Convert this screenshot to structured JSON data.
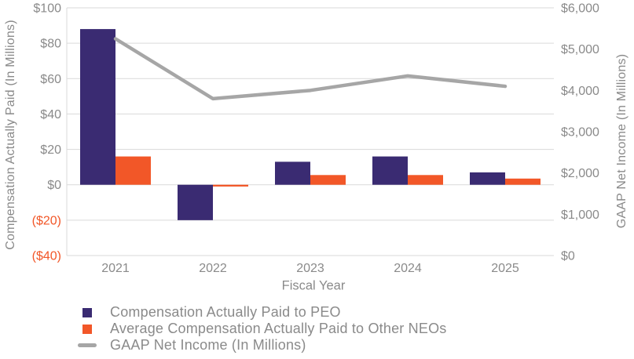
{
  "chart_data": {
    "type": "combo",
    "title": "",
    "categories": [
      "2021",
      "2022",
      "2023",
      "2024",
      "2025"
    ],
    "x_axis": {
      "title": "Fiscal Year"
    },
    "left_axis": {
      "title": "Compensation Actually Paid (In Millions)",
      "min": -40,
      "max": 100,
      "step": 20,
      "ticks": [
        {
          "value": 100,
          "label": "$100"
        },
        {
          "value": 80,
          "label": "$80"
        },
        {
          "value": 60,
          "label": "$60"
        },
        {
          "value": 40,
          "label": "$40"
        },
        {
          "value": 20,
          "label": "$20"
        },
        {
          "value": 0,
          "label": "$0"
        },
        {
          "value": -20,
          "label": "($20)"
        },
        {
          "value": -40,
          "label": "($40)"
        }
      ]
    },
    "right_axis": {
      "title": "GAAP Net Income (In Millions)",
      "min": 0,
      "max": 6000,
      "step": 1000,
      "ticks": [
        {
          "value": 6000,
          "label": "$6,000"
        },
        {
          "value": 5000,
          "label": "$5,000"
        },
        {
          "value": 4000,
          "label": "$4,000"
        },
        {
          "value": 3000,
          "label": "$3,000"
        },
        {
          "value": 2000,
          "label": "$2,000"
        },
        {
          "value": 1000,
          "label": "$1,000"
        },
        {
          "value": 0,
          "label": "$0"
        }
      ]
    },
    "series": [
      {
        "id": "cap-peo",
        "name": "Compensation Actually Paid to PEO",
        "kind": "bar",
        "axis": "left",
        "color": "#3A2B72",
        "values": [
          88,
          -20,
          13,
          16,
          7
        ]
      },
      {
        "id": "cap-other-neos",
        "name": "Average Compensation Actually Paid to Other NEOs",
        "kind": "bar",
        "axis": "left",
        "color": "#F25728",
        "values": [
          16,
          -1,
          5.5,
          5.5,
          3.5
        ]
      },
      {
        "id": "gaap-net-income",
        "name": "GAAP Net Income (In Millions)",
        "kind": "line",
        "axis": "right",
        "color": "#A6A6A6",
        "values": [
          5250,
          3800,
          4000,
          4350,
          4100
        ]
      }
    ],
    "legend_position": "bottom-left",
    "grid": true,
    "colors": {
      "gridline": "#D9D9D9",
      "axis_text": "#8A8A8A",
      "negative_tick": "#F25728",
      "background": "#FFFFFF"
    }
  }
}
